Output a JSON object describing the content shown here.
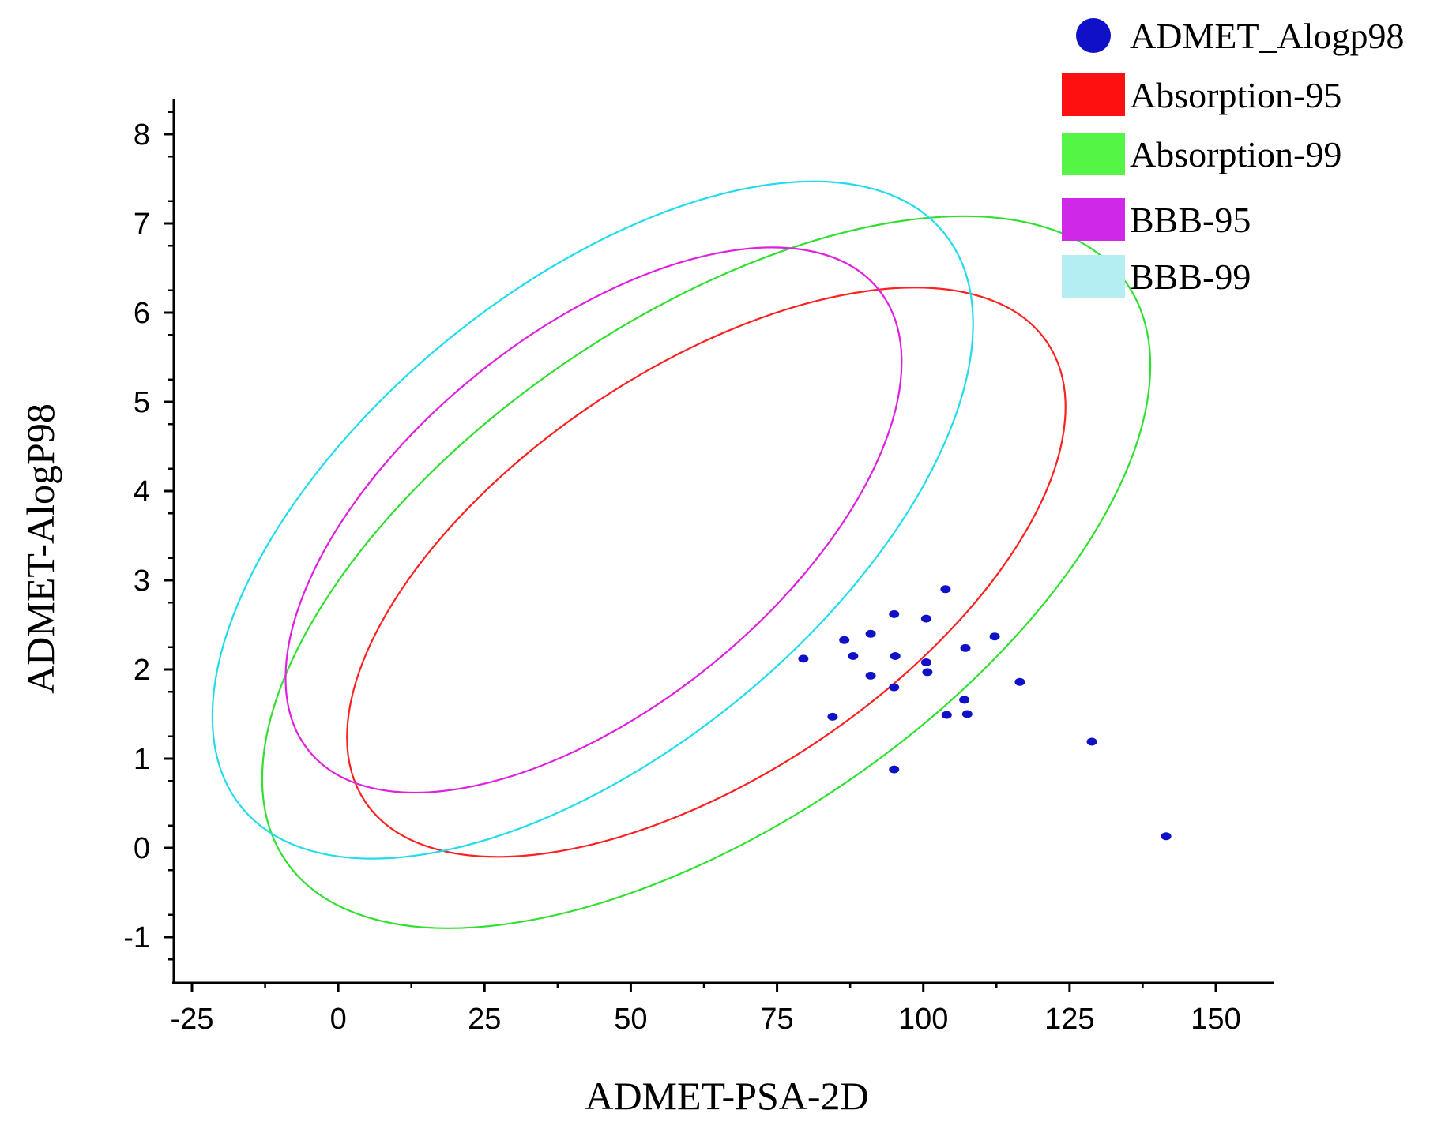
{
  "chart_data": {
    "type": "scatter",
    "title": "",
    "xlabel": "ADMET-PSA-2D",
    "ylabel": "ADMET-AlogP98",
    "xlim": [
      -30,
      160
    ],
    "ylim": [
      -1.5,
      8.5
    ],
    "xticks": [
      -25,
      0,
      25,
      50,
      75,
      100,
      125,
      150
    ],
    "xtick_labels": [
      "-25",
      "0",
      "25",
      "50",
      "75",
      "100",
      "125",
      "150"
    ],
    "yticks": [
      -1,
      0,
      1,
      2,
      3,
      4,
      5,
      6,
      7,
      8
    ],
    "ytick_labels": [
      "-1",
      "0",
      "1",
      "2",
      "3",
      "4",
      "5",
      "6",
      "7",
      "8"
    ],
    "grid": false,
    "legend_position": "top-right",
    "series": [
      {
        "name": "ADMET_Alogp98",
        "kind": "points",
        "color": "#1010c8",
        "points": [
          [
            79.5,
            2.12
          ],
          [
            84.5,
            1.47
          ],
          [
            86.5,
            2.33
          ],
          [
            88,
            2.15
          ],
          [
            91,
            2.4
          ],
          [
            91,
            1.93
          ],
          [
            95,
            2.62
          ],
          [
            95.2,
            2.15
          ],
          [
            95,
            1.8
          ],
          [
            95,
            0.88
          ],
          [
            100.5,
            2.57
          ],
          [
            100.5,
            2.08
          ],
          [
            100.7,
            1.97
          ],
          [
            103.8,
            2.9
          ],
          [
            104,
            1.49
          ],
          [
            107,
            1.66
          ],
          [
            107.2,
            2.24
          ],
          [
            107.5,
            1.5
          ],
          [
            112.2,
            2.37
          ],
          [
            116.5,
            1.86
          ],
          [
            128.8,
            1.19
          ],
          [
            141.5,
            0.13
          ]
        ]
      },
      {
        "name": "Absorption-95",
        "kind": "ellipse",
        "color": "#ff2020",
        "extents": {
          "x_min": 1.5,
          "x_max": 124.3,
          "y_min": -0.1,
          "y_max": 6.28
        }
      },
      {
        "name": "Absorption-99",
        "kind": "ellipse",
        "color": "#30e030",
        "extents": {
          "x_min": -13,
          "x_max": 138.8,
          "y_min": -0.9,
          "y_max": 7.08
        }
      },
      {
        "name": "BBB-95",
        "kind": "ellipse",
        "color": "#e020e0",
        "extents": {
          "x_min": -9,
          "x_max": 96.3,
          "y_min": 0.62,
          "y_max": 6.73
        }
      },
      {
        "name": "BBB-99",
        "kind": "ellipse",
        "color": "#20dcec",
        "extents": {
          "x_min": -21.5,
          "x_max": 108.5,
          "y_min": -0.12,
          "y_max": 7.47
        }
      }
    ],
    "legend": [
      {
        "label": "ADMET_Alogp98",
        "color": "#1010c8",
        "swatch": "circle"
      },
      {
        "label": "Absorption-95",
        "color": "#ff1010",
        "swatch": "rect"
      },
      {
        "label": "Absorption-99",
        "color": "#55f545",
        "swatch": "rect"
      },
      {
        "label": "BBB-95",
        "color": "#d028e8",
        "swatch": "rect"
      },
      {
        "label": "BBB-99",
        "color": "#b4eef2",
        "swatch": "rect"
      }
    ]
  }
}
